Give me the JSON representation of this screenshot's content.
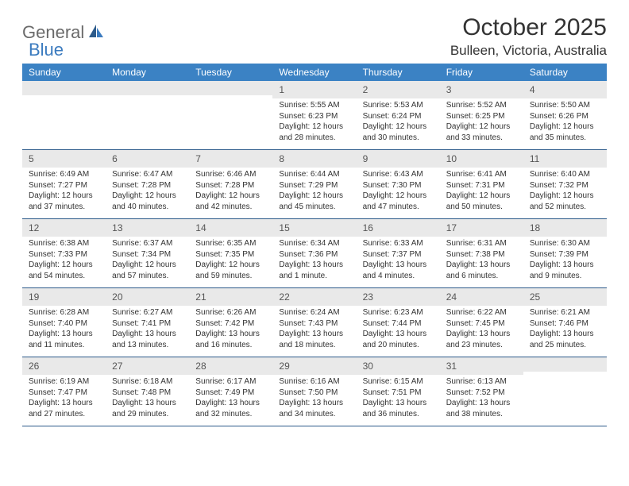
{
  "logo": {
    "text1": "General",
    "text2": "Blue"
  },
  "title": "October 2025",
  "location": "Bulleen, Victoria, Australia",
  "colors": {
    "header_bg": "#3b82c4",
    "header_text": "#ffffff",
    "num_bar_bg": "#e9e9e9",
    "row_border": "#2c5a8a",
    "logo_gray": "#6a6a6a",
    "logo_blue": "#3b7bbf"
  },
  "dayNames": [
    "Sunday",
    "Monday",
    "Tuesday",
    "Wednesday",
    "Thursday",
    "Friday",
    "Saturday"
  ],
  "weeks": [
    [
      {
        "num": "",
        "lines": []
      },
      {
        "num": "",
        "lines": []
      },
      {
        "num": "",
        "lines": []
      },
      {
        "num": "1",
        "lines": [
          "Sunrise: 5:55 AM",
          "Sunset: 6:23 PM",
          "Daylight: 12 hours and 28 minutes."
        ]
      },
      {
        "num": "2",
        "lines": [
          "Sunrise: 5:53 AM",
          "Sunset: 6:24 PM",
          "Daylight: 12 hours and 30 minutes."
        ]
      },
      {
        "num": "3",
        "lines": [
          "Sunrise: 5:52 AM",
          "Sunset: 6:25 PM",
          "Daylight: 12 hours and 33 minutes."
        ]
      },
      {
        "num": "4",
        "lines": [
          "Sunrise: 5:50 AM",
          "Sunset: 6:26 PM",
          "Daylight: 12 hours and 35 minutes."
        ]
      }
    ],
    [
      {
        "num": "5",
        "lines": [
          "Sunrise: 6:49 AM",
          "Sunset: 7:27 PM",
          "Daylight: 12 hours and 37 minutes."
        ]
      },
      {
        "num": "6",
        "lines": [
          "Sunrise: 6:47 AM",
          "Sunset: 7:28 PM",
          "Daylight: 12 hours and 40 minutes."
        ]
      },
      {
        "num": "7",
        "lines": [
          "Sunrise: 6:46 AM",
          "Sunset: 7:28 PM",
          "Daylight: 12 hours and 42 minutes."
        ]
      },
      {
        "num": "8",
        "lines": [
          "Sunrise: 6:44 AM",
          "Sunset: 7:29 PM",
          "Daylight: 12 hours and 45 minutes."
        ]
      },
      {
        "num": "9",
        "lines": [
          "Sunrise: 6:43 AM",
          "Sunset: 7:30 PM",
          "Daylight: 12 hours and 47 minutes."
        ]
      },
      {
        "num": "10",
        "lines": [
          "Sunrise: 6:41 AM",
          "Sunset: 7:31 PM",
          "Daylight: 12 hours and 50 minutes."
        ]
      },
      {
        "num": "11",
        "lines": [
          "Sunrise: 6:40 AM",
          "Sunset: 7:32 PM",
          "Daylight: 12 hours and 52 minutes."
        ]
      }
    ],
    [
      {
        "num": "12",
        "lines": [
          "Sunrise: 6:38 AM",
          "Sunset: 7:33 PM",
          "Daylight: 12 hours and 54 minutes."
        ]
      },
      {
        "num": "13",
        "lines": [
          "Sunrise: 6:37 AM",
          "Sunset: 7:34 PM",
          "Daylight: 12 hours and 57 minutes."
        ]
      },
      {
        "num": "14",
        "lines": [
          "Sunrise: 6:35 AM",
          "Sunset: 7:35 PM",
          "Daylight: 12 hours and 59 minutes."
        ]
      },
      {
        "num": "15",
        "lines": [
          "Sunrise: 6:34 AM",
          "Sunset: 7:36 PM",
          "Daylight: 13 hours and 1 minute."
        ]
      },
      {
        "num": "16",
        "lines": [
          "Sunrise: 6:33 AM",
          "Sunset: 7:37 PM",
          "Daylight: 13 hours and 4 minutes."
        ]
      },
      {
        "num": "17",
        "lines": [
          "Sunrise: 6:31 AM",
          "Sunset: 7:38 PM",
          "Daylight: 13 hours and 6 minutes."
        ]
      },
      {
        "num": "18",
        "lines": [
          "Sunrise: 6:30 AM",
          "Sunset: 7:39 PM",
          "Daylight: 13 hours and 9 minutes."
        ]
      }
    ],
    [
      {
        "num": "19",
        "lines": [
          "Sunrise: 6:28 AM",
          "Sunset: 7:40 PM",
          "Daylight: 13 hours and 11 minutes."
        ]
      },
      {
        "num": "20",
        "lines": [
          "Sunrise: 6:27 AM",
          "Sunset: 7:41 PM",
          "Daylight: 13 hours and 13 minutes."
        ]
      },
      {
        "num": "21",
        "lines": [
          "Sunrise: 6:26 AM",
          "Sunset: 7:42 PM",
          "Daylight: 13 hours and 16 minutes."
        ]
      },
      {
        "num": "22",
        "lines": [
          "Sunrise: 6:24 AM",
          "Sunset: 7:43 PM",
          "Daylight: 13 hours and 18 minutes."
        ]
      },
      {
        "num": "23",
        "lines": [
          "Sunrise: 6:23 AM",
          "Sunset: 7:44 PM",
          "Daylight: 13 hours and 20 minutes."
        ]
      },
      {
        "num": "24",
        "lines": [
          "Sunrise: 6:22 AM",
          "Sunset: 7:45 PM",
          "Daylight: 13 hours and 23 minutes."
        ]
      },
      {
        "num": "25",
        "lines": [
          "Sunrise: 6:21 AM",
          "Sunset: 7:46 PM",
          "Daylight: 13 hours and 25 minutes."
        ]
      }
    ],
    [
      {
        "num": "26",
        "lines": [
          "Sunrise: 6:19 AM",
          "Sunset: 7:47 PM",
          "Daylight: 13 hours and 27 minutes."
        ]
      },
      {
        "num": "27",
        "lines": [
          "Sunrise: 6:18 AM",
          "Sunset: 7:48 PM",
          "Daylight: 13 hours and 29 minutes."
        ]
      },
      {
        "num": "28",
        "lines": [
          "Sunrise: 6:17 AM",
          "Sunset: 7:49 PM",
          "Daylight: 13 hours and 32 minutes."
        ]
      },
      {
        "num": "29",
        "lines": [
          "Sunrise: 6:16 AM",
          "Sunset: 7:50 PM",
          "Daylight: 13 hours and 34 minutes."
        ]
      },
      {
        "num": "30",
        "lines": [
          "Sunrise: 6:15 AM",
          "Sunset: 7:51 PM",
          "Daylight: 13 hours and 36 minutes."
        ]
      },
      {
        "num": "31",
        "lines": [
          "Sunrise: 6:13 AM",
          "Sunset: 7:52 PM",
          "Daylight: 13 hours and 38 minutes."
        ]
      },
      {
        "num": "",
        "lines": []
      }
    ]
  ]
}
